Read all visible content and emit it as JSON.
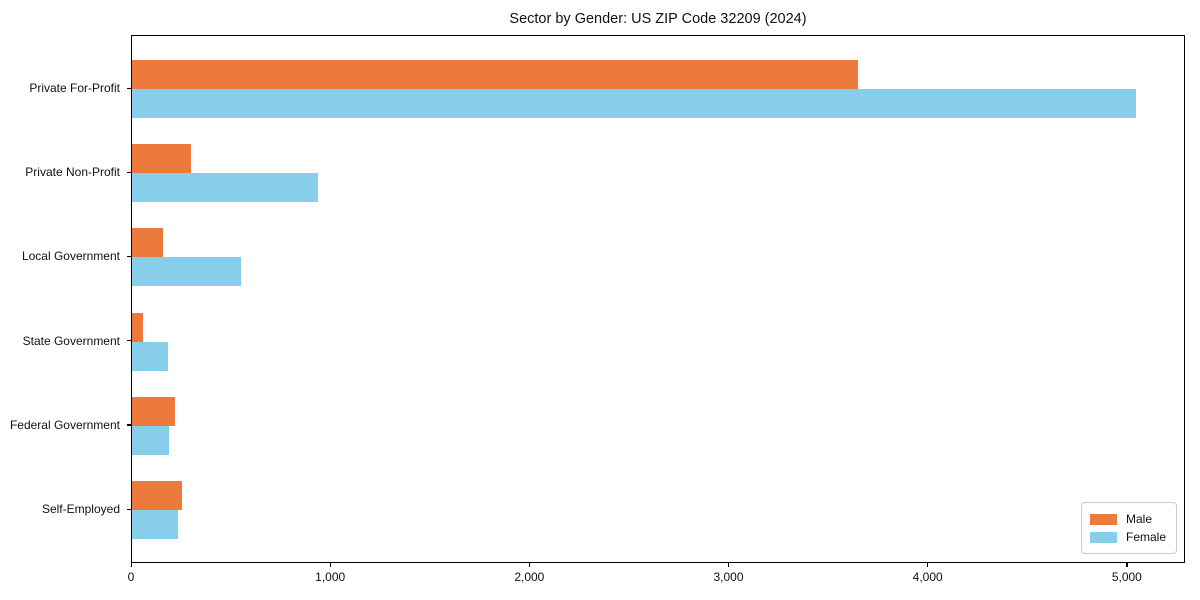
{
  "chart": {
    "title": "Sector by Gender: US ZIP Code 32209 (2024)"
  },
  "chart_data": {
    "type": "bar",
    "orientation": "horizontal",
    "title": "Sector by Gender: US ZIP Code 32209 (2024)",
    "xlabel": "",
    "ylabel": "",
    "categories": [
      "Private For-Profit",
      "Private Non-Profit",
      "Local Government",
      "State Government",
      "Federal Government",
      "Self-Employed"
    ],
    "series": [
      {
        "name": "Male",
        "color": "#EC7A3D",
        "values": [
          3645,
          295,
          155,
          55,
          215,
          250
        ]
      },
      {
        "name": "Female",
        "color": "#87CEEB",
        "values": [
          5040,
          935,
          545,
          180,
          185,
          230
        ]
      }
    ],
    "xlim": [
      0,
      5292
    ],
    "xticks": [
      0,
      1000,
      2000,
      3000,
      4000,
      5000
    ],
    "xtick_labels": [
      "0",
      "1,000",
      "2,000",
      "3,000",
      "4,000",
      "5,000"
    ],
    "legend_position": "lower right",
    "grid": false,
    "background_color": "#ffffff",
    "axis_color": "#000000"
  }
}
